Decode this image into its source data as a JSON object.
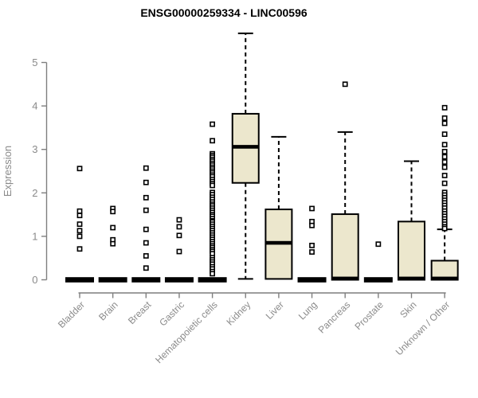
{
  "colors": {
    "box_fill": "#ece7cd",
    "box_stroke": "#000000",
    "median": "#000000",
    "outlier_stroke": "#000000",
    "outlier_fill": "#ffffff",
    "axis": "#7f7f7f",
    "axis_text": "#8a8a8a",
    "title_text": "#000000",
    "background": "#ffffff"
  },
  "chart_data": {
    "type": "boxplot",
    "title": "ENSG00000259334 - LINC00596",
    "xlabel": "",
    "ylabel": "Expression",
    "ylim": [
      0,
      5.8
    ],
    "yticks": [
      0,
      1,
      2,
      3,
      4,
      5
    ],
    "grid": false,
    "legend": "none",
    "categories": [
      "Bladder",
      "Brain",
      "Breast",
      "Gastric",
      "Hematopoietic cells",
      "Kidney",
      "Liver",
      "Lung",
      "Pancreas",
      "Prostate",
      "Skin",
      "Unknown / Other"
    ],
    "boxes": [
      {
        "name": "Bladder",
        "low": 0,
        "q1": 0,
        "median": 0,
        "q3": 0,
        "high": 0,
        "outliers": [
          2.56,
          1.58,
          1.48,
          1.28,
          1.13,
          1.0,
          0.71
        ]
      },
      {
        "name": "Brain",
        "low": 0,
        "q1": 0,
        "median": 0,
        "q3": 0,
        "high": 0,
        "outliers": [
          1.64,
          1.57,
          1.2,
          0.92,
          0.83
        ]
      },
      {
        "name": "Breast",
        "low": 0,
        "q1": 0,
        "median": 0,
        "q3": 0,
        "high": 0,
        "outliers": [
          2.57,
          2.24,
          1.89,
          1.6,
          1.16,
          0.85,
          0.55,
          0.27
        ]
      },
      {
        "name": "Gastric",
        "low": 0,
        "q1": 0,
        "median": 0,
        "q3": 0,
        "high": 0,
        "outliers": [
          1.38,
          1.22,
          1.02,
          0.65
        ]
      },
      {
        "name": "Hematopoietic cells",
        "low": 0,
        "q1": 0,
        "median": 0,
        "q3": 0,
        "high": 0,
        "outliers": [
          3.58,
          3.2,
          2.9,
          2.86,
          2.82,
          2.77,
          2.73,
          2.68,
          2.64,
          2.59,
          2.55,
          2.5,
          2.46,
          2.41,
          2.37,
          2.31,
          2.26,
          2.21,
          2.17,
          2.01,
          1.96,
          1.9,
          1.85,
          1.79,
          1.74,
          1.7,
          1.65,
          1.6,
          1.55,
          1.5,
          1.46,
          1.41,
          1.36,
          1.33,
          1.28,
          1.23,
          1.18,
          1.13,
          1.08,
          1.03,
          0.98,
          0.93,
          0.88,
          0.83,
          0.78,
          0.74,
          0.69,
          0.65,
          0.6,
          0.51,
          0.46,
          0.41,
          0.36,
          0.3,
          0.25,
          0.19,
          0.14
        ]
      },
      {
        "name": "Kidney",
        "low": 0.02,
        "q1": 2.23,
        "median": 3.06,
        "q3": 3.82,
        "high": 5.67,
        "outliers": []
      },
      {
        "name": "Liver",
        "low": 0.02,
        "q1": 0.02,
        "median": 0.85,
        "q3": 1.62,
        "high": 3.29,
        "outliers": []
      },
      {
        "name": "Lung",
        "low": 0,
        "q1": 0,
        "median": 0,
        "q3": 0,
        "high": 0,
        "outliers": [
          1.64,
          1.34,
          1.25,
          0.79,
          0.64
        ]
      },
      {
        "name": "Pancreas",
        "low": 0,
        "q1": 0,
        "median": 0.03,
        "q3": 1.51,
        "high": 3.4,
        "outliers": [
          4.5
        ]
      },
      {
        "name": "Prostate",
        "low": 0,
        "q1": 0,
        "median": 0,
        "q3": 0,
        "high": 0,
        "outliers": [
          0.82
        ]
      },
      {
        "name": "Skin",
        "low": 0,
        "q1": 0,
        "median": 0.03,
        "q3": 1.34,
        "high": 2.73,
        "outliers": []
      },
      {
        "name": "Unknown / Other",
        "low": 0,
        "q1": 0,
        "median": 0.03,
        "q3": 0.44,
        "high": 1.16,
        "outliers": [
          3.96,
          3.72,
          3.6,
          3.35,
          3.11,
          2.95,
          2.83,
          2.71,
          2.59,
          2.4,
          2.22,
          2.01,
          1.95,
          1.89,
          1.83,
          1.77,
          1.71,
          1.65,
          1.58,
          1.52,
          1.46,
          1.4,
          1.34,
          1.28,
          1.22,
          1.18
        ]
      }
    ]
  }
}
